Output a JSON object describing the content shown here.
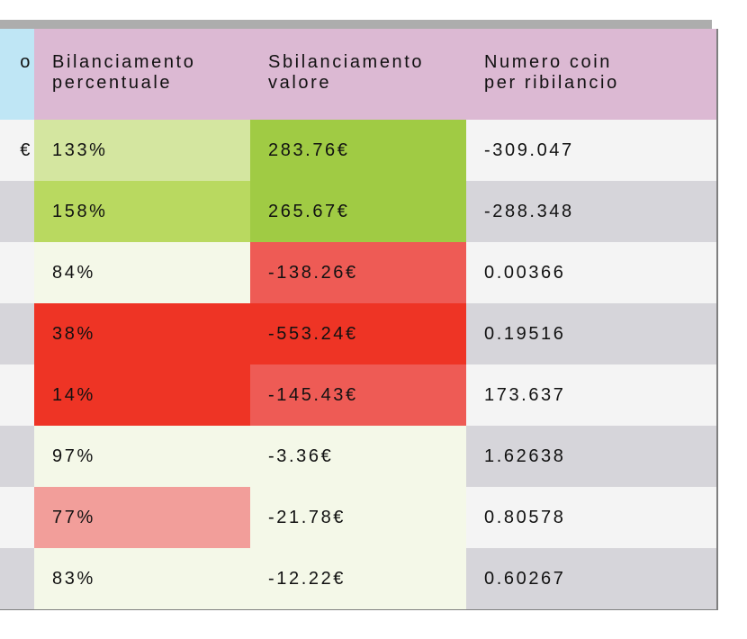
{
  "header": {
    "col0": "o",
    "col1_line1": "Bilanciamento",
    "col1_line2": "percentuale",
    "col2_line1": "Sbilanciamento",
    "col2_line2": "valore",
    "col3_line1": "Numero coin",
    "col3_line2": "per ribilancio"
  },
  "rows": [
    {
      "lead": "€",
      "pct": "133%",
      "val": "283.76€",
      "coins": "-309.047",
      "pct_color": "#d4e6a0",
      "val_color": "#a0cb44",
      "coins_color": "#f4f4f4",
      "lead_color": "#f4f4f4"
    },
    {
      "lead": "",
      "pct": "158%",
      "val": "265.67€",
      "coins": "-288.348",
      "pct_color": "#b9d960",
      "val_color": "#a0cb44",
      "coins_color": "#d6d5da",
      "lead_color": "#d6d5da"
    },
    {
      "lead": "",
      "pct": "84%",
      "val": "-138.26€",
      "coins": "0.00366",
      "pct_color": "#f4f8e8",
      "val_color": "#ee5b55",
      "coins_color": "#f4f4f4",
      "lead_color": "#f4f4f4"
    },
    {
      "lead": "",
      "pct": "38%",
      "val": "-553.24€",
      "coins": "0.19516",
      "pct_color": "#ee3425",
      "val_color": "#ee3425",
      "coins_color": "#d6d5da",
      "lead_color": "#d6d5da"
    },
    {
      "lead": "",
      "pct": "14%",
      "val": "-145.43€",
      "coins": "173.637",
      "pct_color": "#ee3425",
      "val_color": "#ee5b55",
      "coins_color": "#f4f4f4",
      "lead_color": "#f4f4f4"
    },
    {
      "lead": "",
      "pct": "97%",
      "val": "-3.36€",
      "coins": "1.62638",
      "pct_color": "#f4f8e8",
      "val_color": "#f4f8e8",
      "coins_color": "#d6d5da",
      "lead_color": "#d6d5da"
    },
    {
      "lead": "",
      "pct": "77%",
      "val": "-21.78€",
      "coins": "0.80578",
      "pct_color": "#f29e9a",
      "val_color": "#f4f8e8",
      "coins_color": "#f4f4f4",
      "lead_color": "#f4f4f4"
    },
    {
      "lead": "",
      "pct": "83%",
      "val": "-12.22€",
      "coins": "0.60267",
      "pct_color": "#f4f8e8",
      "val_color": "#f4f8e8",
      "coins_color": "#d6d5da",
      "lead_color": "#d6d5da"
    }
  ]
}
